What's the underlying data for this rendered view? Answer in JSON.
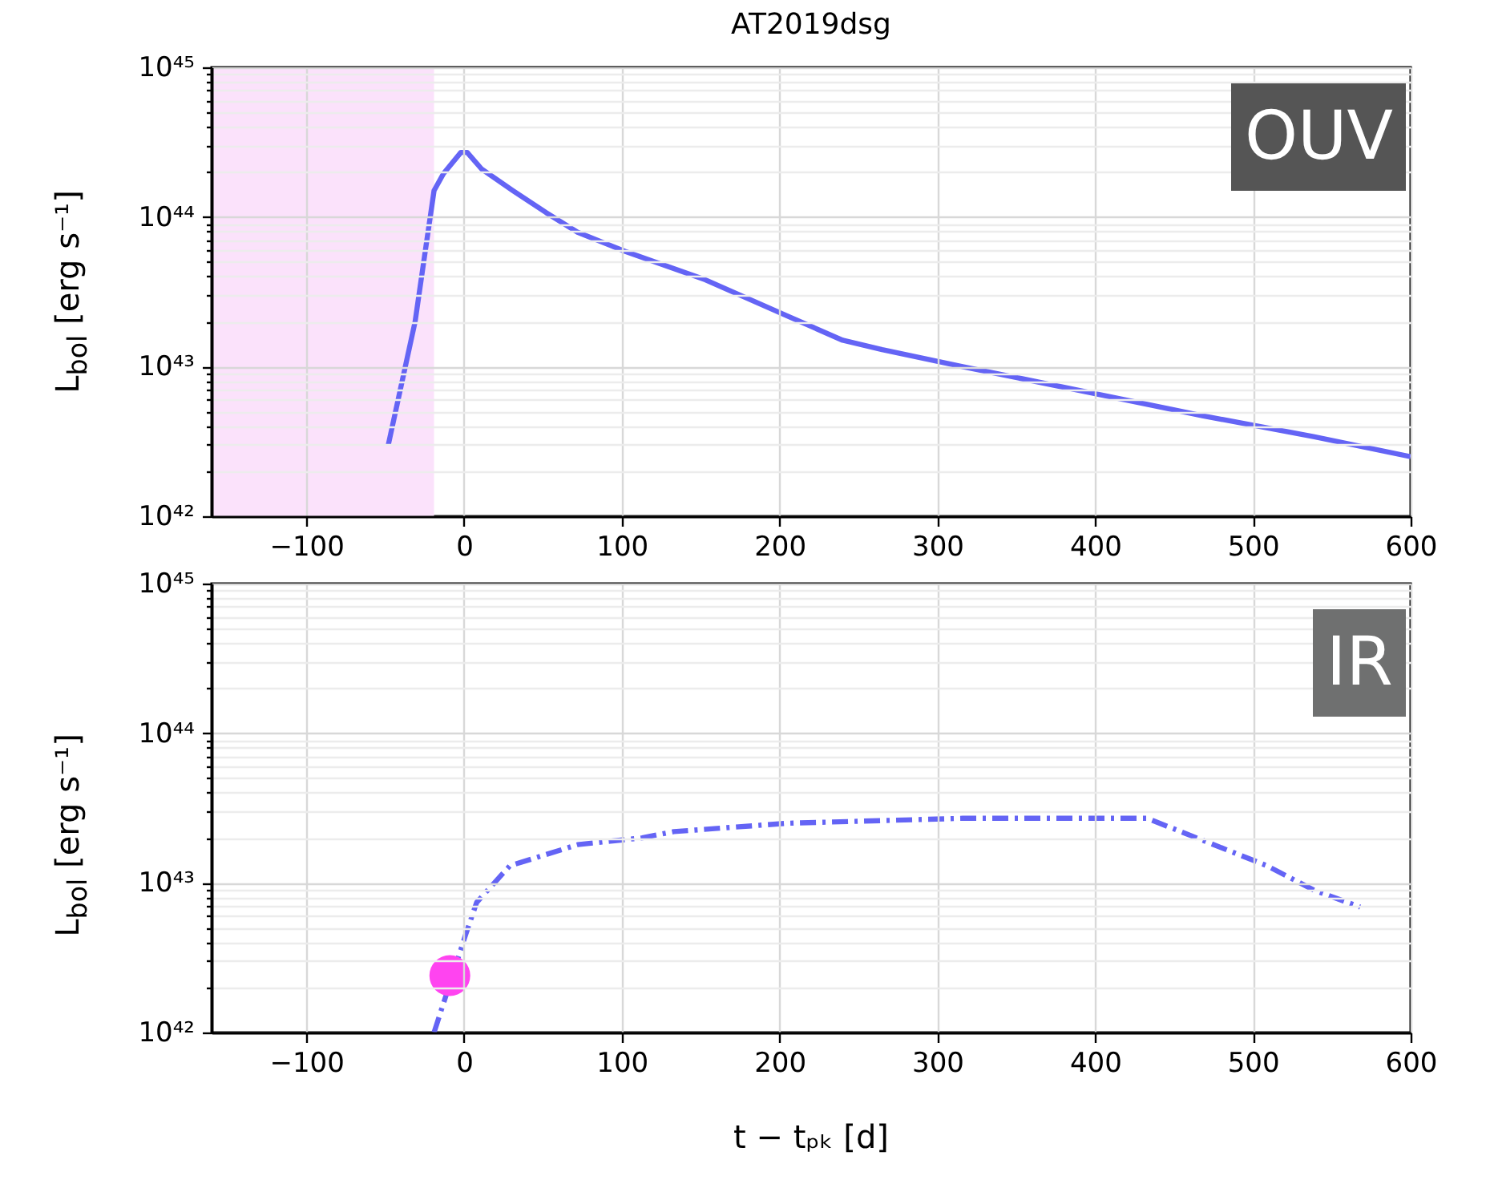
{
  "chart_data": [
    {
      "type": "line",
      "title": "AT2019dsg",
      "ylabel": "L$_{bol}$ [erg s⁻¹]",
      "annotations": [
        "OUV"
      ],
      "xlim": [
        -160,
        600
      ],
      "xticks": [
        {
          "value": -100,
          "label": "−100"
        },
        0,
        100,
        200,
        300,
        400,
        500,
        600
      ],
      "ylim": [
        1e+42,
        1e+45
      ],
      "log": true,
      "grid": true,
      "yticks": [
        {
          "value": 1e+42,
          "label": "10⁴²"
        },
        {
          "value": 2e+42,
          "label": null
        },
        {
          "value": 3e+42,
          "label": null
        },
        {
          "value": 4e+42,
          "label": null
        },
        {
          "value": 5e+42,
          "label": null
        },
        {
          "value": 6e+42,
          "label": null
        },
        {
          "value": 7e+42,
          "label": null
        },
        {
          "value": 8e+42,
          "label": null
        },
        {
          "value": 9e+42,
          "label": null
        },
        {
          "value": 1e+43,
          "label": "10⁴³"
        },
        {
          "value": 2e+43,
          "label": null
        },
        {
          "value": 3e+43,
          "label": null
        },
        {
          "value": 4e+43,
          "label": null
        },
        {
          "value": 5e+43,
          "label": null
        },
        {
          "value": 6e+43,
          "label": null
        },
        {
          "value": 7e+43,
          "label": null
        },
        {
          "value": 8e+43,
          "label": null
        },
        {
          "value": 9e+43,
          "label": null
        },
        {
          "value": 1e+44,
          "label": "10⁴⁴"
        },
        {
          "value": 2e+44,
          "label": null
        },
        {
          "value": 3e+44,
          "label": null
        },
        {
          "value": 4e+44,
          "label": null
        },
        {
          "value": 5e+44,
          "label": null
        },
        {
          "value": 6e+44,
          "label": null
        },
        {
          "value": 7e+44,
          "label": null
        },
        {
          "value": 8e+44,
          "label": null
        },
        {
          "value": 9e+44,
          "label": null
        },
        {
          "value": 1e+45,
          "label": "10⁴⁵"
        }
      ],
      "bands": [
        {
          "axis": "x",
          "from": -160,
          "to": -19,
          "color": "#fbe2fb"
        }
      ],
      "series": [
        {
          "color": "#6464f5",
          "line_style": "solid",
          "x": [
            -48,
            -31,
            -25,
            -19,
            -13,
            -2,
            2,
            11,
            31,
            52,
            72,
            102,
            153,
            204,
            240,
            265,
            316,
            397,
            468,
            539,
            600
          ],
          "values": [
            3e+42,
            2e+43,
            5.5e+43,
            1.5e+44,
            1.95e+44,
            2.7e+44,
            2.7e+44,
            2.1e+44,
            1.5e+44,
            1.07e+44,
            7.9e+43,
            5.9e+43,
            3.8e+43,
            2.2e+43,
            1.5e+43,
            1.3e+43,
            1e+43,
            6.7e+42,
            4.7e+42,
            3.4e+42,
            2.5e+42
          ]
        }
      ]
    },
    {
      "type": "line",
      "xlabel": "t − tₚₖ [d]",
      "ylabel": "L$_{bol}$ [erg s⁻¹]",
      "annotations": [
        "IR"
      ],
      "xlim": [
        -160,
        600
      ],
      "xticks": [
        {
          "value": -100,
          "label": "−100"
        },
        0,
        100,
        200,
        300,
        400,
        500,
        600
      ],
      "ylim": [
        1e+42,
        1e+45
      ],
      "log": true,
      "grid": true,
      "yticks": [
        {
          "value": 1e+42,
          "label": "10⁴²"
        },
        {
          "value": 2e+42,
          "label": null
        },
        {
          "value": 3e+42,
          "label": null
        },
        {
          "value": 4e+42,
          "label": null
        },
        {
          "value": 5e+42,
          "label": null
        },
        {
          "value": 6e+42,
          "label": null
        },
        {
          "value": 7e+42,
          "label": null
        },
        {
          "value": 8e+42,
          "label": null
        },
        {
          "value": 9e+42,
          "label": null
        },
        {
          "value": 1e+43,
          "label": "10⁴³"
        },
        {
          "value": 2e+43,
          "label": null
        },
        {
          "value": 3e+43,
          "label": null
        },
        {
          "value": 4e+43,
          "label": null
        },
        {
          "value": 5e+43,
          "label": null
        },
        {
          "value": 6e+43,
          "label": null
        },
        {
          "value": 7e+43,
          "label": null
        },
        {
          "value": 8e+43,
          "label": null
        },
        {
          "value": 9e+43,
          "label": null
        },
        {
          "value": 1e+44,
          "label": "10⁴⁴"
        },
        {
          "value": 2e+44,
          "label": null
        },
        {
          "value": 3e+44,
          "label": null
        },
        {
          "value": 4e+44,
          "label": null
        },
        {
          "value": 5e+44,
          "label": null
        },
        {
          "value": 6e+44,
          "label": null
        },
        {
          "value": 7e+44,
          "label": null
        },
        {
          "value": 8e+44,
          "label": null
        },
        {
          "value": 9e+44,
          "label": null
        },
        {
          "value": 1e+45,
          "label": "10⁴⁵"
        }
      ],
      "series": [
        {
          "color": "#6464f5",
          "line_style": "dashdot",
          "x": [
            -19,
            1,
            8,
            29,
            72,
            113,
            133,
            204,
            316,
            433,
            509,
            539,
            568
          ],
          "values": [
            1e+42,
            4.5e+42,
            7.4e+42,
            1.3e+43,
            1.8e+43,
            2e+43,
            2.2e+43,
            2.5e+43,
            2.7e+43,
            2.7e+43,
            1.3e+43,
            8.9e+42,
            6.9e+42
          ]
        },
        {
          "type": "scatter",
          "color": "#ff44f0",
          "marker": "circle",
          "x": [
            -9
          ],
          "values": [
            2.4e+42
          ]
        }
      ]
    }
  ]
}
